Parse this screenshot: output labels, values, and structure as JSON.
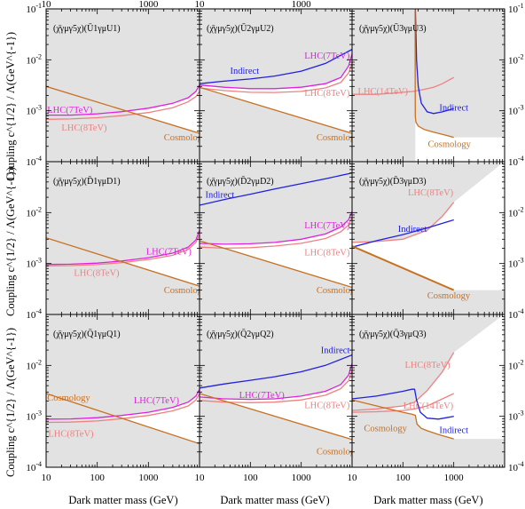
{
  "figure": {
    "y_axis_label": "Coupling c^{1/2} / Λ(GeV^{-1})",
    "x_axis_label": "Dark matter mass (GeV)"
  },
  "colors": {
    "lhc7": "#e020e0",
    "lhc8": "#f08080",
    "lhc14": "#f08080",
    "indirect": "#2020e0",
    "cosmology": "#c87020",
    "excluded": "#e2e2e2"
  },
  "chart_data": [
    {
      "type": "line",
      "title": "(χ̄γμγ5χ)(Ū1γμU1)",
      "x_scale": "log",
      "y_scale": "log",
      "xlim": [
        10,
        100000
      ],
      "ylim": [
        0.0001,
        0.1
      ],
      "x_ticks": [
        "10",
        "100",
        "1000"
      ],
      "y_ticks": [
        "10^{-4}",
        "10^{-3}",
        "10^{-2}",
        "10^{-1}"
      ],
      "series": [
        {
          "name": "LHC(7TeV)",
          "key": "lhc7",
          "x": [
            10,
            30,
            100,
            300,
            1000,
            3000,
            6000,
            8500,
            10000
          ],
          "y": [
            0.00082,
            0.00082,
            0.00087,
            0.00096,
            0.00112,
            0.0014,
            0.0018,
            0.0024,
            0.0032
          ],
          "label_at": [
            10.5,
            0.00108
          ],
          "label_anchor": "start"
        },
        {
          "name": "LHC(8TeV)",
          "key": "lhc8",
          "x": [
            10,
            30,
            100,
            300,
            1000,
            3000,
            6000,
            8500,
            10000
          ],
          "y": [
            0.00068,
            0.00069,
            0.00073,
            0.0008,
            0.00092,
            0.00115,
            0.0015,
            0.0019,
            0.0024
          ],
          "label_at": [
            20,
            0.00048
          ],
          "label_anchor": "start"
        },
        {
          "name": "Cosmology",
          "key": "cosmology",
          "x": [
            10,
            10000
          ],
          "y": [
            0.003,
            0.00036
          ],
          "label_at": [
            2000,
            0.00031
          ],
          "label_anchor": "start",
          "fill": "below"
        }
      ]
    },
    {
      "type": "line",
      "title": "(χ̄γμγ5χ)(Ū2γμU2)",
      "x_scale": "log",
      "y_scale": "log",
      "xlim": [
        10,
        100000
      ],
      "ylim": [
        0.0001,
        0.1
      ],
      "x_ticks": [
        "10",
        "100",
        "1000"
      ],
      "y_ticks": [
        "10^{-4}",
        "10^{-3}",
        "10^{-2}",
        "10^{-1}"
      ],
      "series": [
        {
          "name": "LHC(7TeV)",
          "key": "lhc7",
          "x": [
            10,
            30,
            100,
            300,
            1000,
            3000,
            6000,
            8500,
            10000
          ],
          "y": [
            0.0032,
            0.0029,
            0.00272,
            0.00272,
            0.0029,
            0.0034,
            0.0045,
            0.0075,
            0.013
          ],
          "label_at": [
            9000,
            0.0125
          ],
          "label_anchor": "end"
        },
        {
          "name": "LHC(8TeV)",
          "key": "lhc8",
          "x": [
            10,
            30,
            100,
            300,
            1000,
            3000,
            6000,
            8500,
            10000
          ],
          "y": [
            0.0028,
            0.0025,
            0.0023,
            0.00228,
            0.0024,
            0.0028,
            0.0036,
            0.0055,
            0.0085
          ],
          "label_at": [
            9000,
            0.0023
          ],
          "label_anchor": "end"
        },
        {
          "name": "Indirect",
          "key": "indirect",
          "x": [
            10,
            30,
            100,
            300,
            1000,
            3000,
            10000
          ],
          "y": [
            0.0034,
            0.0038,
            0.0042,
            0.0048,
            0.006,
            0.0085,
            0.016
          ],
          "label_at": [
            40,
            0.0062
          ],
          "label_anchor": "start"
        },
        {
          "name": "Cosmology",
          "key": "cosmology",
          "x": [
            10,
            10000
          ],
          "y": [
            0.0029,
            0.00036
          ],
          "label_at": [
            2000,
            0.00031
          ],
          "label_anchor": "start",
          "fill": "below"
        }
      ]
    },
    {
      "type": "line",
      "title": "(χ̄γμγ5χ)(Ū3γμU3)",
      "x_scale": "log",
      "y_scale": "log",
      "xlim": [
        10,
        1000
      ],
      "ylim": [
        0.0001,
        0.1
      ],
      "x_ticks": [
        "10",
        "100",
        "1000"
      ],
      "y_ticks": [
        "10^{-4}",
        "10^{-3}",
        "10^{-2}",
        "10^{-1}"
      ],
      "series": [
        {
          "name": "LHC(14TeV)",
          "key": "lhc14",
          "x": [
            10,
            30,
            60,
            100,
            160,
            250,
            400,
            600,
            1000
          ],
          "y": [
            0.0021,
            0.0021,
            0.0022,
            0.0023,
            0.0024,
            0.0026,
            0.0029,
            0.0034,
            0.0045
          ],
          "label_at": [
            13,
            0.0025
          ],
          "label_anchor": "start"
        },
        {
          "name": "Indirect",
          "key": "indirect",
          "x": [
            176,
            185,
            200,
            230,
            300,
            400,
            600,
            1000
          ],
          "y": [
            0.1,
            0.01,
            0.003,
            0.0014,
            0.00095,
            0.00088,
            0.00095,
            0.0011
          ],
          "label_at": [
            520,
            0.00118
          ],
          "label_anchor": "start"
        },
        {
          "name": "Cosmology",
          "key": "cosmology",
          "x": [
            174,
            174.5,
            175,
            180,
            200,
            260,
            400,
            700,
            1000
          ],
          "y": [
            0.1,
            0.003,
            0.00078,
            0.0006,
            0.0005,
            0.00043,
            0.00038,
            0.00033,
            0.0003
          ],
          "label_at": [
            310,
            0.00023
          ],
          "label_anchor": "start",
          "fill": "below"
        }
      ],
      "fill_extra": "left-of-threshold"
    },
    {
      "type": "line",
      "title": "(χ̄γμγ5χ)(D̄1γμD1)",
      "x_scale": "log",
      "y_scale": "log",
      "xlim": [
        10,
        100000
      ],
      "ylim": [
        0.0001,
        0.1
      ],
      "x_ticks": [
        "10",
        "100",
        "1000"
      ],
      "y_ticks": [
        "10^{-4}",
        "10^{-3}",
        "10^{-2}",
        "10^{-1}"
      ],
      "series": [
        {
          "name": "LHC(7TeV)",
          "key": "lhc7",
          "x": [
            10,
            30,
            100,
            300,
            1000,
            3000,
            6000,
            8500,
            10000
          ],
          "y": [
            0.00096,
            0.00097,
            0.00102,
            0.00112,
            0.0013,
            0.0016,
            0.0021,
            0.0029,
            0.0045
          ],
          "label_at": [
            900,
            0.00175
          ],
          "label_anchor": "start"
        },
        {
          "name": "LHC(8TeV)",
          "key": "lhc8",
          "x": [
            10,
            30,
            100,
            300,
            1000,
            3000,
            6000,
            8500,
            10000
          ],
          "y": [
            0.0009,
            0.00091,
            0.00095,
            0.00104,
            0.0012,
            0.00145,
            0.0019,
            0.0026,
            0.0037
          ],
          "label_at": [
            35,
            0.00068
          ],
          "label_anchor": "start"
        },
        {
          "name": "Cosmology",
          "key": "cosmology",
          "x": [
            10,
            10000
          ],
          "y": [
            0.0032,
            0.00036
          ],
          "label_at": [
            2000,
            0.00031
          ],
          "label_anchor": "start",
          "fill": "below"
        }
      ]
    },
    {
      "type": "line",
      "title": "(χ̄γμγ5χ)(D̄2γμD2)",
      "x_scale": "log",
      "y_scale": "log",
      "xlim": [
        10,
        100000
      ],
      "ylim": [
        0.0001,
        0.1
      ],
      "x_ticks": [
        "10",
        "100",
        "1000"
      ],
      "y_ticks": [
        "10^{-4}",
        "10^{-3}",
        "10^{-2}",
        "10^{-1}"
      ],
      "series": [
        {
          "name": "LHC(7TeV)",
          "key": "lhc7",
          "x": [
            10,
            30,
            100,
            300,
            1000,
            3000,
            6000,
            8500,
            10000
          ],
          "y": [
            0.0025,
            0.0024,
            0.00245,
            0.0026,
            0.003,
            0.0038,
            0.0052,
            0.0072,
            0.0105
          ],
          "label_at": [
            9000,
            0.0058
          ],
          "label_anchor": "end"
        },
        {
          "name": "LHC(8TeV)",
          "key": "lhc8",
          "x": [
            10,
            30,
            100,
            300,
            1000,
            3000,
            6000,
            8500,
            10000
          ],
          "y": [
            0.0021,
            0.002,
            0.00205,
            0.0022,
            0.0025,
            0.0031,
            0.0042,
            0.0057,
            0.0082
          ],
          "label_at": [
            9000,
            0.0017
          ],
          "label_anchor": "end"
        },
        {
          "name": "Indirect",
          "key": "indirect",
          "x": [
            10,
            30,
            100,
            300,
            1000,
            3000,
            10000
          ],
          "y": [
            0.014,
            0.018,
            0.023,
            0.029,
            0.037,
            0.046,
            0.06
          ],
          "label_at": [
            13,
            0.023
          ],
          "label_anchor": "start"
        },
        {
          "name": "Cosmology",
          "key": "cosmology",
          "x": [
            10,
            10000
          ],
          "y": [
            0.0028,
            0.00034
          ],
          "label_at": [
            2000,
            0.00031
          ],
          "label_anchor": "start",
          "fill": "below"
        }
      ]
    },
    {
      "type": "line",
      "title": "(χ̄γμγ5χ)(D̄3γμD3)",
      "x_scale": "log",
      "y_scale": "log",
      "xlim": [
        10,
        1000
      ],
      "ylim": [
        0.0001,
        0.1
      ],
      "x_ticks": [
        "10",
        "100",
        "1000"
      ],
      "y_ticks": [
        "10^{-4}",
        "10^{-3}",
        "10^{-2}",
        "10^{-1}"
      ],
      "series": [
        {
          "name": "LHC(8TeV)",
          "key": "lhc8",
          "x": [
            10,
            30,
            100,
            300,
            600,
            1000
          ],
          "y": [
            0.0026,
            0.0027,
            0.003,
            0.0045,
            0.0085,
            0.016
          ],
          "label_at": [
            980,
            0.0255
          ],
          "label_anchor": "end"
        },
        {
          "name": "Indirect",
          "key": "indirect",
          "x": [
            10,
            30,
            100,
            300,
            1000
          ],
          "y": [
            0.0021,
            0.0028,
            0.0037,
            0.005,
            0.0072
          ],
          "label_at": [
            80,
            0.0049
          ],
          "label_anchor": "start"
        },
        {
          "name": "Cosmology",
          "key": "cosmology",
          "x": [
            10,
            1000
          ],
          "y": [
            0.0022,
            0.0003
          ],
          "label_at": [
            300,
            0.00024
          ],
          "label_anchor": "start",
          "fill": "below"
        }
      ]
    },
    {
      "type": "line",
      "title": "(χ̄γμγ5χ)(Q̄1γμQ1)",
      "x_scale": "log",
      "y_scale": "log",
      "xlim": [
        10,
        100000
      ],
      "ylim": [
        0.0001,
        0.1
      ],
      "x_ticks": [
        "10",
        "100",
        "1000"
      ],
      "y_ticks": [
        "10^{-4}",
        "10^{-3}",
        "10^{-2}",
        "10^{-1}"
      ],
      "series": [
        {
          "name": "LHC(7TeV)",
          "key": "lhc7",
          "x": [
            10,
            30,
            100,
            300,
            1000,
            3000,
            6000,
            8500,
            10000
          ],
          "y": [
            0.00088,
            0.00089,
            0.00094,
            0.00104,
            0.0012,
            0.0015,
            0.0019,
            0.0025,
            0.0034
          ],
          "label_at": [
            4000,
            0.0021
          ],
          "label_anchor": "end"
        },
        {
          "name": "LHC(8TeV)",
          "key": "lhc8",
          "x": [
            10,
            30,
            100,
            300,
            1000,
            3000,
            6000,
            8500,
            10000
          ],
          "y": [
            0.00076,
            0.00077,
            0.00081,
            0.0009,
            0.00104,
            0.00128,
            0.0016,
            0.0021,
            0.0028
          ],
          "label_at": [
            11,
            0.00047
          ],
          "label_anchor": "start"
        },
        {
          "name": "Cosmology",
          "key": "cosmology",
          "x": [
            10,
            10000
          ],
          "y": [
            0.0028,
            0.00029
          ],
          "label_at": [
            10.5,
            0.0024
          ],
          "label_anchor": "start",
          "fill": "below"
        }
      ]
    },
    {
      "type": "line",
      "title": "(χ̄γμγ5χ)(Q̄2γμQ2)",
      "x_scale": "log",
      "y_scale": "log",
      "xlim": [
        10,
        100000
      ],
      "ylim": [
        0.0001,
        0.1
      ],
      "x_ticks": [
        "10",
        "100",
        "1000"
      ],
      "y_ticks": [
        "10^{-4}",
        "10^{-3}",
        "10^{-2}",
        "10^{-1}"
      ],
      "series": [
        {
          "name": "LHC(7TeV)",
          "key": "lhc7",
          "x": [
            10,
            30,
            100,
            300,
            1000,
            3000,
            6000,
            8500,
            10000
          ],
          "y": [
            0.0024,
            0.0022,
            0.00215,
            0.0022,
            0.0025,
            0.0031,
            0.0042,
            0.0064,
            0.011
          ],
          "label_at": [
            60,
            0.0027
          ],
          "label_anchor": "start"
        },
        {
          "name": "LHC(8TeV)",
          "key": "lhc8",
          "x": [
            10,
            30,
            100,
            300,
            1000,
            3000,
            6000,
            8500,
            10000
          ],
          "y": [
            0.00205,
            0.0019,
            0.00185,
            0.0019,
            0.0021,
            0.0026,
            0.0035,
            0.005,
            0.008
          ],
          "label_at": [
            9000,
            0.0017
          ],
          "label_anchor": "end"
        },
        {
          "name": "Indirect",
          "key": "indirect",
          "x": [
            10,
            30,
            100,
            300,
            1000,
            3000,
            10000
          ],
          "y": [
            0.0036,
            0.0043,
            0.0051,
            0.006,
            0.0075,
            0.01,
            0.016
          ],
          "label_at": [
            9000,
            0.0205
          ],
          "label_anchor": "end"
        },
        {
          "name": "Cosmology",
          "key": "cosmology",
          "x": [
            10,
            10000
          ],
          "y": [
            0.0028,
            0.00035
          ],
          "label_at": [
            2000,
            0.00021
          ],
          "label_anchor": "start",
          "fill": "below"
        }
      ]
    },
    {
      "type": "line",
      "title": "(χ̄γμγ5χ)(Q̄3γμQ3)",
      "x_scale": "log",
      "y_scale": "log",
      "xlim": [
        10,
        1000
      ],
      "ylim": [
        0.0001,
        0.1
      ],
      "x_ticks": [
        "10",
        "100",
        "1000"
      ],
      "y_ticks": [
        "10^{-4}",
        "10^{-3}",
        "10^{-2}",
        "10^{-1}"
      ],
      "series": [
        {
          "name": "LHC(8TeV)",
          "key": "lhc8",
          "x": [
            10,
            30,
            100,
            170,
            300,
            600,
            1000
          ],
          "y": [
            0.0013,
            0.0014,
            0.0016,
            0.0019,
            0.0032,
            0.0075,
            0.018
          ],
          "label_at": [
            850,
            0.0105
          ],
          "label_anchor": "end"
        },
        {
          "name": "LHC(14TeV)",
          "key": "lhc14",
          "x": [
            10,
            30,
            100,
            170,
            300,
            600,
            1000
          ],
          "y": [
            0.0012,
            0.00123,
            0.0013,
            0.0014,
            0.0016,
            0.0022,
            0.0028
          ],
          "label_at": [
            980,
            0.00165
          ],
          "label_anchor": "end"
        },
        {
          "name": "Indirect",
          "key": "indirect",
          "x": [
            10,
            30,
            100,
            150,
            170,
            185,
            220,
            300,
            500,
            1000
          ],
          "y": [
            0.0022,
            0.0025,
            0.0031,
            0.0034,
            0.0034,
            0.0021,
            0.0012,
            0.00092,
            0.00088,
            0.001
          ],
          "label_at": [
            520,
            0.00055
          ],
          "label_anchor": "start"
        },
        {
          "name": "Cosmology",
          "key": "cosmology",
          "x": [
            10,
            40,
            100,
            150,
            175,
            190,
            230,
            300,
            500,
            1000
          ],
          "y": [
            0.0021,
            0.0015,
            0.0012,
            0.0011,
            0.00105,
            0.0007,
            0.00058,
            0.00052,
            0.00044,
            0.00036
          ],
          "label_at": [
            120,
            0.0006
          ],
          "label_anchor": "end",
          "fill": "below"
        }
      ]
    }
  ]
}
